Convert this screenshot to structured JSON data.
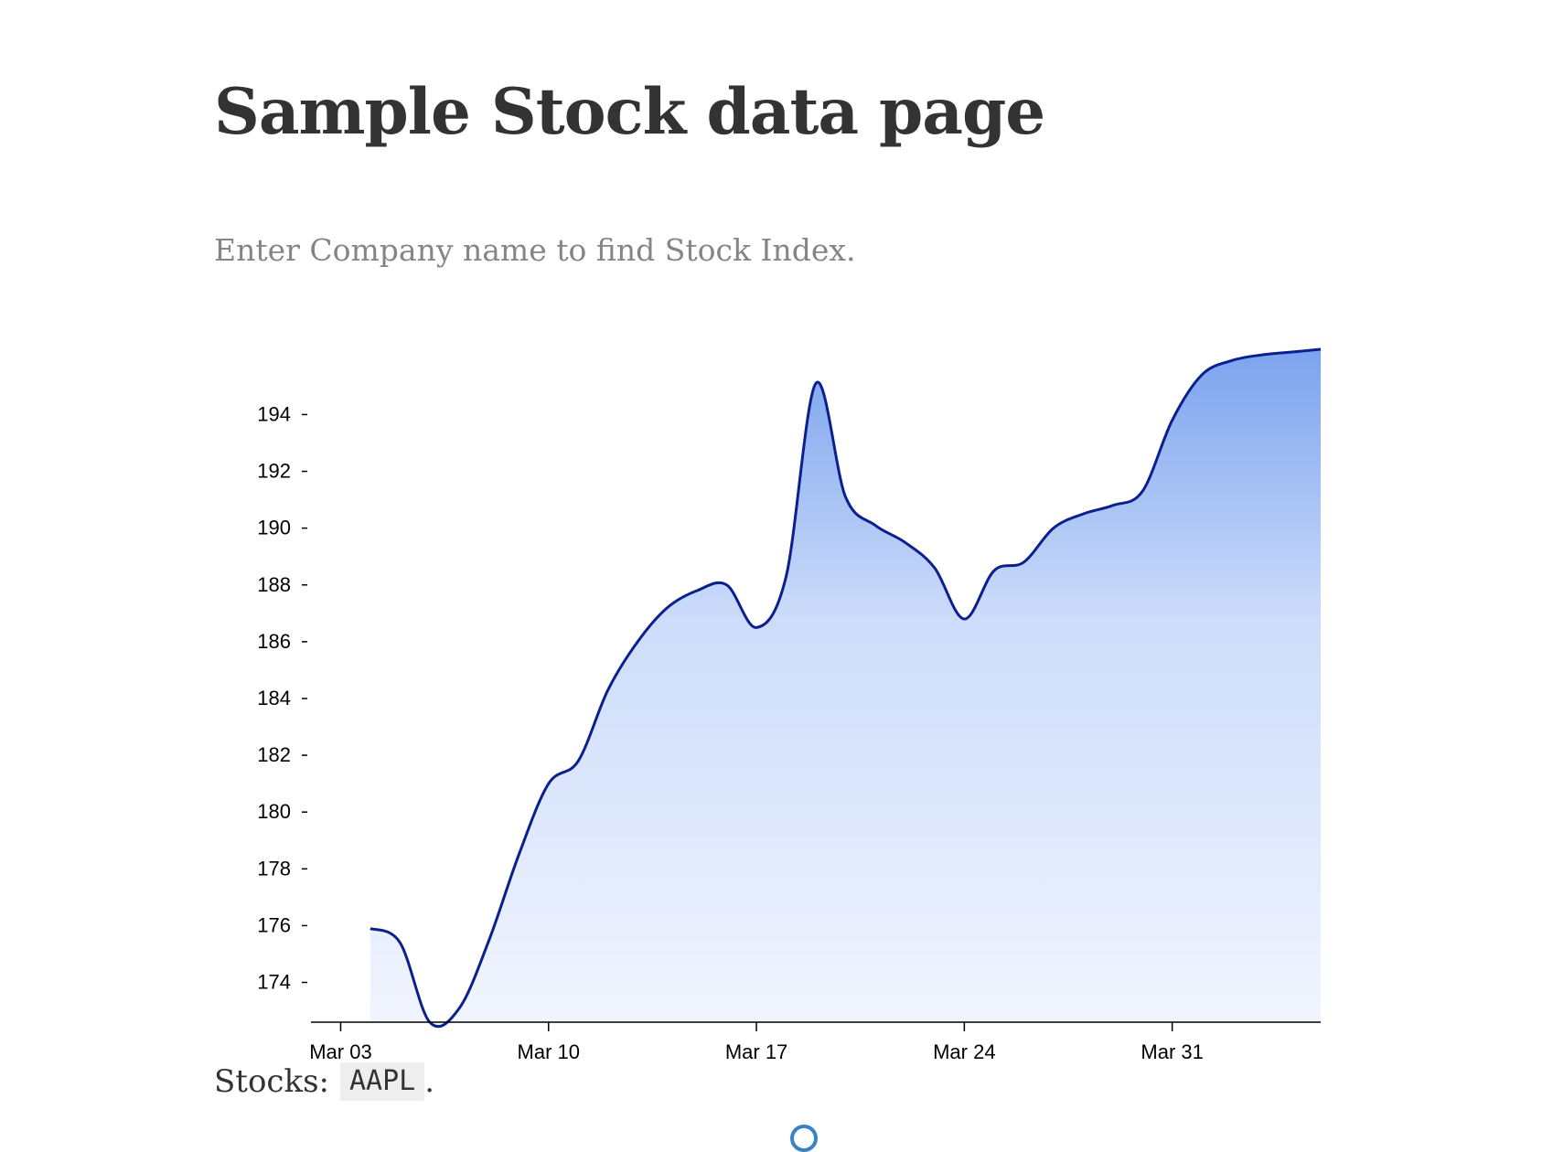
{
  "page": {
    "title": "Sample Stock data page",
    "subtitle": "Enter Company name to find Stock Index.",
    "stocks_label": "Stocks:",
    "stocks_symbol": "AAPL",
    "stocks_suffix": "."
  },
  "colors": {
    "line": "#0b1f8f",
    "area_top": "#7ba3ee",
    "area_mid": "#cddcfa",
    "area_bottom": "#f1f5fe",
    "axis": "#000000",
    "title": "#333333",
    "subtitle": "#858585",
    "spinner": "#3b82c4"
  },
  "chart_data": {
    "type": "area",
    "curve": "smooth",
    "grid": false,
    "x_axis_ticks": [
      "Mar 03",
      "Mar 10",
      "Mar 17",
      "Mar 24",
      "Mar 31"
    ],
    "y_axis_ticks": [
      174,
      176,
      178,
      180,
      182,
      184,
      186,
      188,
      190,
      192,
      194
    ],
    "xlim": [
      "2024-03-02",
      "2024-04-05"
    ],
    "ylim": [
      172.6,
      196.3
    ],
    "series": [
      {
        "x": [
          "2024-03-04",
          "2024-03-05",
          "2024-03-06",
          "2024-03-07",
          "2024-03-08",
          "2024-03-09",
          "2024-03-10",
          "2024-03-11",
          "2024-03-12",
          "2024-03-13",
          "2024-03-14",
          "2024-03-15",
          "2024-03-16",
          "2024-03-17",
          "2024-03-18",
          "2024-03-19",
          "2024-03-20",
          "2024-03-21",
          "2024-03-22",
          "2024-03-23",
          "2024-03-24",
          "2024-03-25",
          "2024-03-26",
          "2024-03-27",
          "2024-03-28",
          "2024-03-29",
          "2024-03-30",
          "2024-03-31",
          "2024-04-01",
          "2024-04-02",
          "2024-04-03",
          "2024-04-04",
          "2024-04-05"
        ],
        "y": [
          175.9,
          175.4,
          172.6,
          173.1,
          175.5,
          178.5,
          181.0,
          181.8,
          184.3,
          186.0,
          187.2,
          187.8,
          188.0,
          186.5,
          188.3,
          195.1,
          191.1,
          190.1,
          189.5,
          188.6,
          186.8,
          188.5,
          188.8,
          190.0,
          190.5,
          190.8,
          191.3,
          193.8,
          195.4,
          195.9,
          196.1,
          196.2,
          196.3
        ]
      }
    ]
  }
}
